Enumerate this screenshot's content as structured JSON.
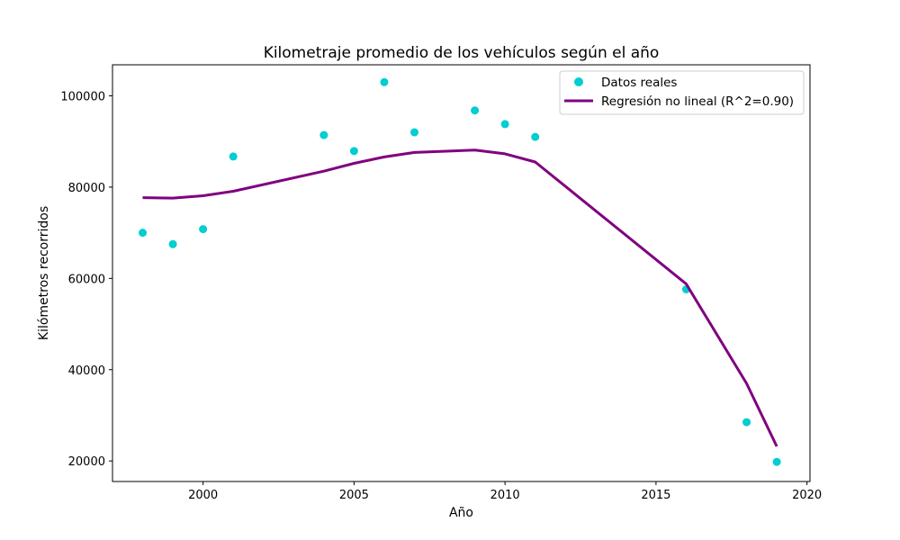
{
  "chart_data": {
    "type": "scatter",
    "title": "Kilometraje promedio de los vehículos según el año",
    "xlabel": "Año",
    "ylabel": "Kilómetros recorridos",
    "xlim": [
      1997,
      2020.1
    ],
    "ylim": [
      15500,
      106800
    ],
    "xticks": [
      2000,
      2005,
      2010,
      2015,
      2020
    ],
    "yticks": [
      20000,
      40000,
      60000,
      80000,
      100000
    ],
    "grid": false,
    "legend_position": "top-right",
    "series": [
      {
        "name": "Datos reales",
        "kind": "scatter",
        "color": "#00ced1",
        "points": [
          {
            "x": 1998,
            "y": 70000
          },
          {
            "x": 1999,
            "y": 67500
          },
          {
            "x": 2000,
            "y": 70800
          },
          {
            "x": 2001,
            "y": 86700
          },
          {
            "x": 2004,
            "y": 91400
          },
          {
            "x": 2005,
            "y": 87900
          },
          {
            "x": 2006,
            "y": 103000
          },
          {
            "x": 2007,
            "y": 92000
          },
          {
            "x": 2009,
            "y": 96800
          },
          {
            "x": 2010,
            "y": 93800
          },
          {
            "x": 2011,
            "y": 91000
          },
          {
            "x": 2016,
            "y": 57600
          },
          {
            "x": 2018,
            "y": 28500
          },
          {
            "x": 2019,
            "y": 19800
          }
        ]
      },
      {
        "name": "Regresión no lineal (R^2=0.90)",
        "kind": "line",
        "color": "#800080",
        "points": [
          {
            "x": 1998,
            "y": 77700
          },
          {
            "x": 1999,
            "y": 77600
          },
          {
            "x": 2000,
            "y": 78100
          },
          {
            "x": 2001,
            "y": 79100
          },
          {
            "x": 2004,
            "y": 83500
          },
          {
            "x": 2005,
            "y": 85200
          },
          {
            "x": 2006,
            "y": 86600
          },
          {
            "x": 2007,
            "y": 87600
          },
          {
            "x": 2009,
            "y": 88100
          },
          {
            "x": 2010,
            "y": 87300
          },
          {
            "x": 2011,
            "y": 85500
          },
          {
            "x": 2016,
            "y": 58800
          },
          {
            "x": 2018,
            "y": 37000
          },
          {
            "x": 2019,
            "y": 23200
          }
        ]
      }
    ]
  }
}
